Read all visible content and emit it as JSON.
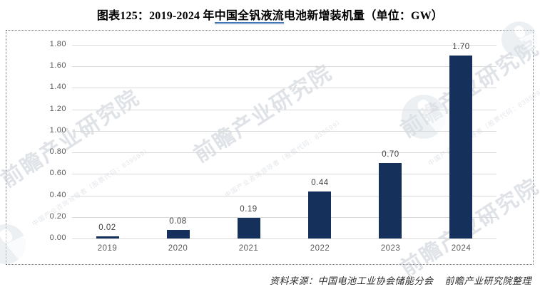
{
  "title": {
    "prefix": "图表125：2019-2024 年",
    "underlined": "中国全钒液流",
    "suffix": "电池新增装机量（单位：GW）"
  },
  "source_note": {
    "label": "资料来源：中国电池工业协会储能分会",
    "credit": "前瞻产业研究院整理"
  },
  "watermark": {
    "brand": "前瞻产业研究院",
    "tagline": "中国产业咨询领导者（股票代码：839599）"
  },
  "colors": {
    "bar": "#16305C",
    "underline": "#2E64AE",
    "gridline": "#D9D9D9",
    "axis_text": "#595959",
    "value_text": "#3F3F3F",
    "watermark": "#B9C0CA"
  },
  "chart_data": {
    "type": "bar",
    "title": "图表125：2019-2024 年中国全钒液流电池新增装机量（单位：GW）",
    "categories": [
      "2019",
      "2020",
      "2021",
      "2022",
      "2023",
      "2024"
    ],
    "values": [
      0.02,
      0.08,
      0.19,
      0.44,
      0.7,
      1.7
    ],
    "value_labels": [
      "0.02",
      "0.08",
      "0.19",
      "0.44",
      "0.70",
      "1.70"
    ],
    "xlabel": "",
    "ylabel": "",
    "unit": "GW",
    "ylim": [
      0,
      1.8
    ],
    "ytick_step": 0.2,
    "yticks": [
      "1.80",
      "1.60",
      "1.40",
      "1.20",
      "1.00",
      "0.80",
      "0.60",
      "0.40",
      "0.20",
      "0.00"
    ],
    "grid": true,
    "legend": false
  }
}
